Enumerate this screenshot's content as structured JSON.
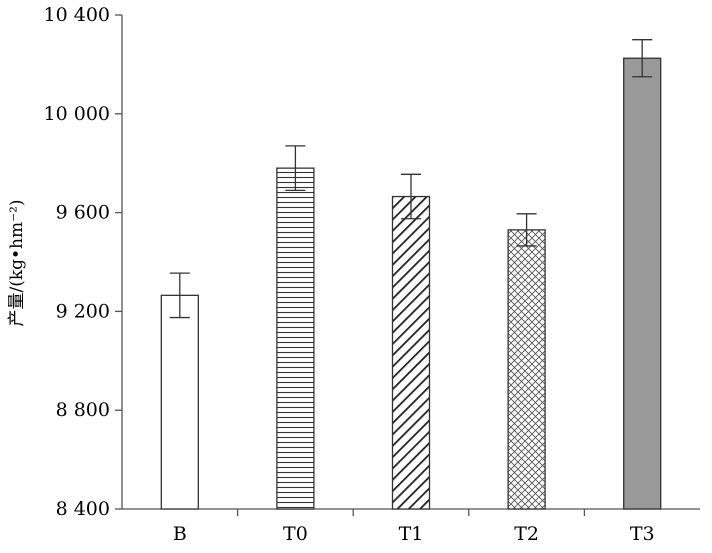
{
  "chart_data": {
    "type": "bar",
    "categories": [
      "B",
      "T0",
      "T1",
      "T2",
      "T3"
    ],
    "values": [
      9265,
      9780,
      9665,
      9530,
      10225
    ],
    "error": [
      90,
      90,
      90,
      65,
      75
    ],
    "patterns": [
      "none",
      "horizontal",
      "diagonal",
      "crosshatch",
      "solid"
    ],
    "ylim": [
      8400,
      10400
    ],
    "yticks": [
      8400,
      8800,
      9200,
      9600,
      10000,
      10400
    ],
    "ytick_labels": [
      "8 400",
      "8 800",
      "9 200",
      "9 600",
      "10 000",
      "10 400"
    ],
    "ylabel": "产量/(kg•hm⁻²)",
    "xlabel": "",
    "grid": false,
    "colors": {
      "axis": "#555555",
      "solid_fill": "#999999",
      "pattern": "#222222",
      "outline": "#333333"
    }
  }
}
